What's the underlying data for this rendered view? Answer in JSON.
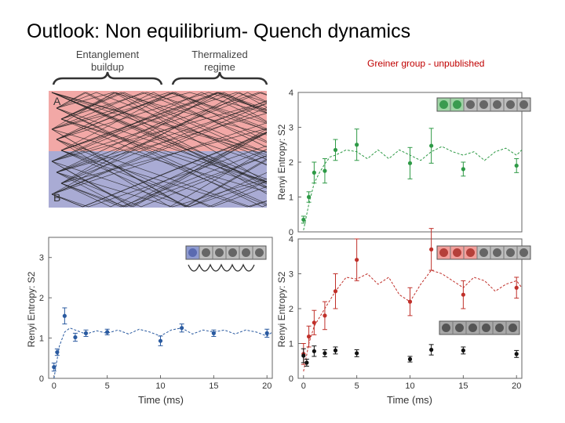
{
  "slide": {
    "title": "Outlook: Non equilibrium- Quench dynamics",
    "credit": "Greiner group - unpublished"
  },
  "schematic": {
    "label_left": [
      "Entanglement",
      "buildup"
    ],
    "label_right": [
      "Thermalized",
      "regime"
    ],
    "region_a": "A",
    "region_b": "B",
    "colors": {
      "a": "#f2a8a6",
      "b": "#a9abd4"
    }
  },
  "chart_data": [
    {
      "id": "green",
      "type": "scatter",
      "ylabel": "Renyi Entropy: S2",
      "xlim": [
        -0.5,
        20.5
      ],
      "ylim": [
        0,
        4
      ],
      "yticks": [
        0,
        1,
        2,
        3,
        4
      ],
      "color": "#2e9a46",
      "sites": {
        "marked": 2,
        "total": 7,
        "fill": "#9fd3a5",
        "dot": "#3a9b4f"
      },
      "series": [
        {
          "x": [
            0,
            0.5,
            1,
            2,
            3,
            5,
            10,
            12,
            15,
            20
          ],
          "y": [
            0.35,
            1.0,
            1.7,
            1.75,
            2.35,
            2.5,
            1.97,
            2.47,
            1.8,
            1.9
          ],
          "err": [
            0.1,
            0.15,
            0.3,
            0.35,
            0.3,
            0.45,
            0.45,
            0.5,
            0.2,
            0.2
          ]
        }
      ],
      "fit": {
        "x": [
          0,
          0.5,
          1,
          1.5,
          2,
          2.5,
          3,
          4,
          5,
          6,
          7,
          8,
          9,
          10,
          11,
          12,
          13,
          14,
          15,
          16,
          17,
          18,
          19,
          20,
          20.5
        ],
        "y": [
          0.05,
          0.8,
          1.4,
          1.7,
          1.95,
          2.15,
          2.2,
          2.35,
          2.3,
          2.1,
          2.35,
          2.1,
          2.35,
          2.2,
          2.05,
          2.3,
          2.45,
          2.3,
          2.2,
          2.3,
          2.05,
          2.3,
          2.4,
          2.2,
          2.35
        ]
      }
    },
    {
      "id": "blue",
      "type": "scatter",
      "xlabel": "Time (ms)",
      "ylabel": "Renyi Entropy: S2",
      "xlim": [
        -0.5,
        20.5
      ],
      "ylim": [
        0,
        3.5
      ],
      "xticks": [
        0,
        5,
        10,
        15,
        20
      ],
      "yticks": [
        0,
        1,
        2,
        3
      ],
      "color": "#2a5aa0",
      "sites": {
        "marked": 1,
        "total": 6,
        "fill": "#8f9bd0",
        "dot": "#5a6ab0"
      },
      "series": [
        {
          "x": [
            0,
            0.3,
            1,
            2,
            3,
            5,
            10,
            12,
            15,
            20
          ],
          "y": [
            0.28,
            0.65,
            1.55,
            1.02,
            1.12,
            1.15,
            0.93,
            1.25,
            1.12,
            1.12
          ],
          "err": [
            0.1,
            0.08,
            0.2,
            0.1,
            0.08,
            0.07,
            0.12,
            0.1,
            0.08,
            0.1
          ]
        }
      ],
      "fit": {
        "x": [
          0,
          0.5,
          1,
          1.5,
          2,
          3,
          4,
          5,
          6,
          7,
          8,
          9,
          10,
          11,
          12,
          13,
          14,
          15,
          16,
          17,
          18,
          19,
          20,
          20.5
        ],
        "y": [
          0.0,
          0.8,
          1.15,
          1.25,
          1.2,
          1.1,
          1.18,
          1.12,
          1.2,
          1.1,
          1.22,
          1.15,
          1.05,
          1.2,
          1.25,
          1.1,
          1.2,
          1.15,
          1.2,
          1.1,
          1.2,
          1.15,
          1.05,
          1.15
        ]
      }
    },
    {
      "id": "red-black",
      "type": "scatter",
      "xlabel": "Time (ms)",
      "ylabel": "Renyi Entropy: S2",
      "xlim": [
        -0.5,
        20.5
      ],
      "ylim": [
        0,
        4
      ],
      "xticks": [
        0,
        5,
        10,
        15,
        20
      ],
      "yticks": [
        0,
        1,
        2,
        3,
        4
      ],
      "sites_red": {
        "marked": 3,
        "total": 7,
        "fill": "#f29f9b",
        "dot": "#b5403a"
      },
      "sites_black": {
        "marked": 6,
        "total": 6,
        "fill": "#a8a8a8",
        "dot": "#555555"
      },
      "series": [
        {
          "name": "red",
          "color": "#c0302a",
          "x": [
            0,
            0.5,
            1,
            2,
            3,
            5,
            10,
            12,
            15,
            20
          ],
          "y": [
            0.7,
            1.2,
            1.6,
            1.8,
            2.5,
            3.4,
            2.2,
            3.7,
            2.4,
            2.6
          ],
          "err": [
            0.3,
            0.3,
            0.35,
            0.4,
            0.5,
            0.6,
            0.4,
            0.6,
            0.4,
            0.3
          ]
        },
        {
          "name": "black",
          "color": "#111111",
          "x": [
            0,
            0.3,
            1,
            2,
            3,
            5,
            10,
            12,
            15,
            20
          ],
          "y": [
            0.65,
            0.45,
            0.78,
            0.72,
            0.8,
            0.72,
            0.55,
            0.82,
            0.8,
            0.7
          ],
          "err": [
            0.2,
            0.1,
            0.15,
            0.1,
            0.1,
            0.1,
            0.08,
            0.15,
            0.1,
            0.1
          ]
        }
      ],
      "fit": {
        "x": [
          0,
          0.5,
          1,
          2,
          3,
          4,
          5,
          6,
          7,
          8,
          9,
          10,
          11,
          12,
          13,
          14,
          15,
          16,
          17,
          18,
          19,
          20,
          20.5
        ],
        "y": [
          0.2,
          1.0,
          1.5,
          2.0,
          2.5,
          2.9,
          2.85,
          3.0,
          2.7,
          2.9,
          2.4,
          2.2,
          2.7,
          3.1,
          3.0,
          2.8,
          2.6,
          2.9,
          2.8,
          2.5,
          2.7,
          2.8,
          2.6
        ]
      }
    }
  ]
}
